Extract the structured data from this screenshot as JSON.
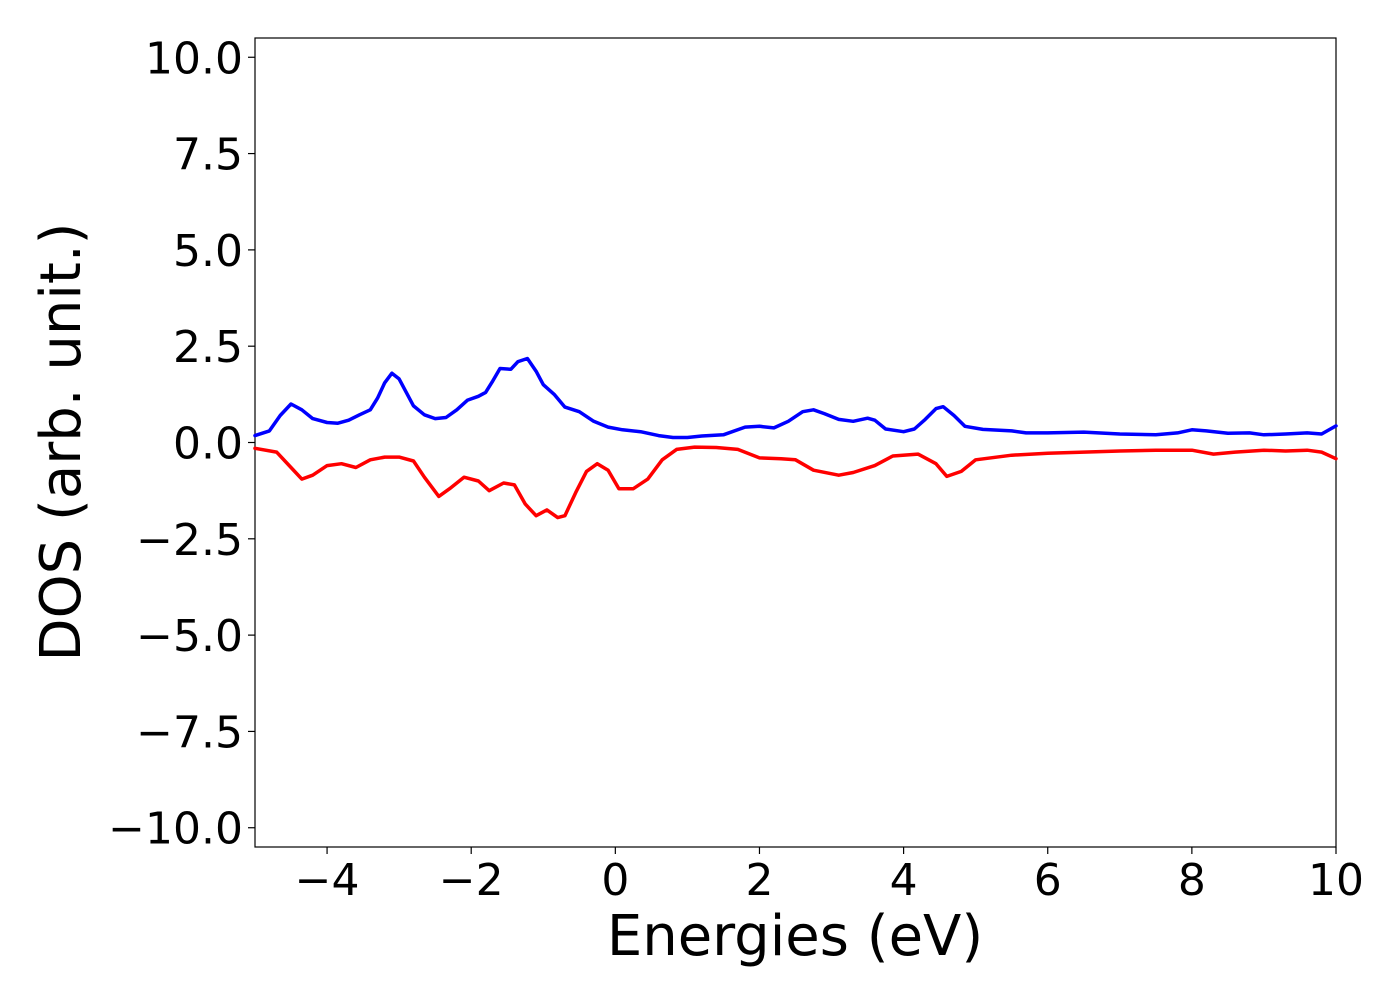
{
  "chart_data": {
    "type": "line",
    "title": "",
    "xlabel": "Energies (eV)",
    "ylabel": "DOS (arb. unit.)",
    "xlim": [
      -5,
      10
    ],
    "ylim": [
      -10.5,
      10.5
    ],
    "xticks": [
      {
        "value": -4,
        "label": "−4"
      },
      {
        "value": -2,
        "label": "−2"
      },
      {
        "value": 0,
        "label": "0"
      },
      {
        "value": 2,
        "label": "2"
      },
      {
        "value": 4,
        "label": "4"
      },
      {
        "value": 6,
        "label": "6"
      },
      {
        "value": 8,
        "label": "8"
      },
      {
        "value": 10,
        "label": "10"
      }
    ],
    "yticks": [
      {
        "value": 10,
        "label": "10.0"
      },
      {
        "value": 7.5,
        "label": "7.5"
      },
      {
        "value": 5,
        "label": "5.0"
      },
      {
        "value": 2.5,
        "label": "2.5"
      },
      {
        "value": 0,
        "label": "0.0"
      },
      {
        "value": -2.5,
        "label": "−2.5"
      },
      {
        "value": -5,
        "label": "−5.0"
      },
      {
        "value": -7.5,
        "label": "−7.5"
      },
      {
        "value": -10,
        "label": "−10.0"
      }
    ],
    "grid": false,
    "legend": "none",
    "series": [
      {
        "color": "#0000ff",
        "points": [
          [
            -5.0,
            0.18
          ],
          [
            -4.8,
            0.3
          ],
          [
            -4.65,
            0.7
          ],
          [
            -4.5,
            1.0
          ],
          [
            -4.35,
            0.85
          ],
          [
            -4.2,
            0.62
          ],
          [
            -4.0,
            0.52
          ],
          [
            -3.85,
            0.5
          ],
          [
            -3.7,
            0.58
          ],
          [
            -3.55,
            0.72
          ],
          [
            -3.4,
            0.85
          ],
          [
            -3.3,
            1.15
          ],
          [
            -3.2,
            1.55
          ],
          [
            -3.1,
            1.8
          ],
          [
            -3.0,
            1.65
          ],
          [
            -2.9,
            1.3
          ],
          [
            -2.8,
            0.95
          ],
          [
            -2.65,
            0.72
          ],
          [
            -2.5,
            0.62
          ],
          [
            -2.35,
            0.65
          ],
          [
            -2.2,
            0.85
          ],
          [
            -2.05,
            1.1
          ],
          [
            -1.9,
            1.2
          ],
          [
            -1.8,
            1.3
          ],
          [
            -1.7,
            1.6
          ],
          [
            -1.6,
            1.92
          ],
          [
            -1.45,
            1.9
          ],
          [
            -1.35,
            2.1
          ],
          [
            -1.22,
            2.18
          ],
          [
            -1.1,
            1.85
          ],
          [
            -1.0,
            1.5
          ],
          [
            -0.85,
            1.25
          ],
          [
            -0.7,
            0.92
          ],
          [
            -0.5,
            0.8
          ],
          [
            -0.3,
            0.55
          ],
          [
            -0.1,
            0.4
          ],
          [
            0.1,
            0.33
          ],
          [
            0.35,
            0.28
          ],
          [
            0.6,
            0.18
          ],
          [
            0.8,
            0.13
          ],
          [
            1.0,
            0.13
          ],
          [
            1.2,
            0.17
          ],
          [
            1.5,
            0.2
          ],
          [
            1.8,
            0.4
          ],
          [
            2.0,
            0.42
          ],
          [
            2.2,
            0.38
          ],
          [
            2.4,
            0.55
          ],
          [
            2.6,
            0.8
          ],
          [
            2.75,
            0.85
          ],
          [
            2.9,
            0.75
          ],
          [
            3.1,
            0.6
          ],
          [
            3.3,
            0.55
          ],
          [
            3.5,
            0.63
          ],
          [
            3.6,
            0.58
          ],
          [
            3.75,
            0.35
          ],
          [
            4.0,
            0.28
          ],
          [
            4.15,
            0.35
          ],
          [
            4.3,
            0.6
          ],
          [
            4.45,
            0.88
          ],
          [
            4.55,
            0.93
          ],
          [
            4.7,
            0.7
          ],
          [
            4.85,
            0.42
          ],
          [
            5.1,
            0.34
          ],
          [
            5.5,
            0.3
          ],
          [
            5.7,
            0.25
          ],
          [
            6.0,
            0.25
          ],
          [
            6.5,
            0.27
          ],
          [
            7.0,
            0.22
          ],
          [
            7.5,
            0.2
          ],
          [
            7.8,
            0.25
          ],
          [
            8.0,
            0.33
          ],
          [
            8.2,
            0.3
          ],
          [
            8.5,
            0.24
          ],
          [
            8.8,
            0.25
          ],
          [
            9.0,
            0.2
          ],
          [
            9.3,
            0.22
          ],
          [
            9.6,
            0.25
          ],
          [
            9.8,
            0.22
          ],
          [
            10.0,
            0.43
          ]
        ]
      },
      {
        "color": "#ff0000",
        "points": [
          [
            -5.0,
            -0.15
          ],
          [
            -4.7,
            -0.25
          ],
          [
            -4.5,
            -0.65
          ],
          [
            -4.35,
            -0.95
          ],
          [
            -4.2,
            -0.85
          ],
          [
            -4.0,
            -0.6
          ],
          [
            -3.8,
            -0.55
          ],
          [
            -3.6,
            -0.65
          ],
          [
            -3.4,
            -0.45
          ],
          [
            -3.2,
            -0.38
          ],
          [
            -3.0,
            -0.38
          ],
          [
            -2.8,
            -0.48
          ],
          [
            -2.65,
            -0.9
          ],
          [
            -2.45,
            -1.4
          ],
          [
            -2.3,
            -1.2
          ],
          [
            -2.1,
            -0.9
          ],
          [
            -1.9,
            -1.0
          ],
          [
            -1.75,
            -1.25
          ],
          [
            -1.55,
            -1.05
          ],
          [
            -1.4,
            -1.1
          ],
          [
            -1.25,
            -1.6
          ],
          [
            -1.1,
            -1.9
          ],
          [
            -0.95,
            -1.75
          ],
          [
            -0.8,
            -1.95
          ],
          [
            -0.7,
            -1.9
          ],
          [
            -0.55,
            -1.3
          ],
          [
            -0.4,
            -0.75
          ],
          [
            -0.25,
            -0.55
          ],
          [
            -0.1,
            -0.72
          ],
          [
            0.05,
            -1.2
          ],
          [
            0.25,
            -1.2
          ],
          [
            0.45,
            -0.95
          ],
          [
            0.65,
            -0.45
          ],
          [
            0.85,
            -0.18
          ],
          [
            1.1,
            -0.12
          ],
          [
            1.4,
            -0.13
          ],
          [
            1.7,
            -0.18
          ],
          [
            2.0,
            -0.4
          ],
          [
            2.3,
            -0.42
          ],
          [
            2.5,
            -0.45
          ],
          [
            2.75,
            -0.72
          ],
          [
            3.1,
            -0.85
          ],
          [
            3.3,
            -0.78
          ],
          [
            3.6,
            -0.6
          ],
          [
            3.85,
            -0.35
          ],
          [
            4.2,
            -0.3
          ],
          [
            4.45,
            -0.55
          ],
          [
            4.6,
            -0.88
          ],
          [
            4.8,
            -0.75
          ],
          [
            5.0,
            -0.45
          ],
          [
            5.5,
            -0.33
          ],
          [
            6.0,
            -0.28
          ],
          [
            6.5,
            -0.25
          ],
          [
            7.0,
            -0.22
          ],
          [
            7.5,
            -0.2
          ],
          [
            8.0,
            -0.2
          ],
          [
            8.3,
            -0.3
          ],
          [
            8.6,
            -0.25
          ],
          [
            9.0,
            -0.2
          ],
          [
            9.3,
            -0.22
          ],
          [
            9.6,
            -0.2
          ],
          [
            9.8,
            -0.25
          ],
          [
            10.0,
            -0.42
          ]
        ]
      }
    ]
  }
}
